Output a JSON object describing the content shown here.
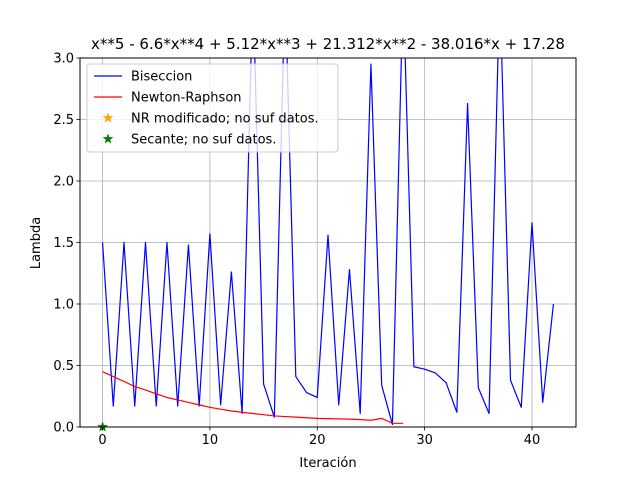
{
  "chart_data": {
    "type": "line",
    "title": "x**5 - 6.6*x**4 + 5.12*x**3 + 21.312*x**2 - 38.016*x + 17.28",
    "xlabel": "Iteración",
    "ylabel": "Lambda",
    "xlim": [
      -2.1,
      44.1
    ],
    "ylim": [
      0,
      3.0
    ],
    "xticks": [
      0,
      10,
      20,
      30,
      40
    ],
    "yticks": [
      0.0,
      0.5,
      1.0,
      1.5,
      2.0,
      2.5,
      3.0
    ],
    "grid": true,
    "legend_position": "top-left",
    "series": [
      {
        "name": "Biseccion",
        "color": "#0000ff",
        "kind": "line",
        "x": [
          0,
          1,
          2,
          3,
          4,
          5,
          6,
          7,
          8,
          9,
          10,
          11,
          12,
          13,
          14,
          15,
          16,
          17,
          18,
          19,
          20,
          21,
          22,
          23,
          24,
          25,
          26,
          27,
          28,
          29,
          30,
          31,
          32,
          33,
          34,
          35,
          36,
          37,
          38,
          39,
          40,
          41,
          42
        ],
        "y": [
          1.5,
          0.17,
          1.5,
          0.17,
          1.5,
          0.17,
          1.5,
          0.17,
          1.48,
          0.17,
          1.57,
          0.18,
          1.26,
          0.11,
          3.6,
          0.35,
          0.08,
          3.6,
          0.41,
          0.28,
          0.24,
          1.56,
          0.18,
          1.28,
          0.11,
          2.95,
          0.34,
          0.02,
          3.6,
          0.49,
          0.47,
          0.44,
          0.36,
          0.12,
          2.63,
          0.32,
          0.11,
          3.6,
          0.38,
          0.16,
          1.66,
          0.2,
          1.0
        ]
      },
      {
        "name": "Newton-Raphson",
        "color": "#ff0000",
        "kind": "line",
        "x": [
          0,
          1,
          2,
          3,
          4,
          5,
          6,
          7,
          8,
          9,
          10,
          11,
          12,
          13,
          14,
          15,
          16,
          17,
          18,
          19,
          20,
          21,
          22,
          23,
          24,
          25,
          26,
          27,
          28
        ],
        "y": [
          0.45,
          0.41,
          0.37,
          0.33,
          0.3,
          0.27,
          0.24,
          0.22,
          0.2,
          0.18,
          0.16,
          0.145,
          0.13,
          0.12,
          0.11,
          0.1,
          0.09,
          0.085,
          0.08,
          0.075,
          0.07,
          0.068,
          0.066,
          0.064,
          0.06,
          0.055,
          0.07,
          0.03,
          0.03
        ]
      },
      {
        "name": "NR modificado; no suf datos.",
        "color": "#ffa500",
        "kind": "star",
        "x": [
          0
        ],
        "y": [
          0
        ]
      },
      {
        "name": "Secante; no suf datos.",
        "color": "#008000",
        "kind": "star",
        "x": [
          0
        ],
        "y": [
          0
        ]
      }
    ]
  }
}
